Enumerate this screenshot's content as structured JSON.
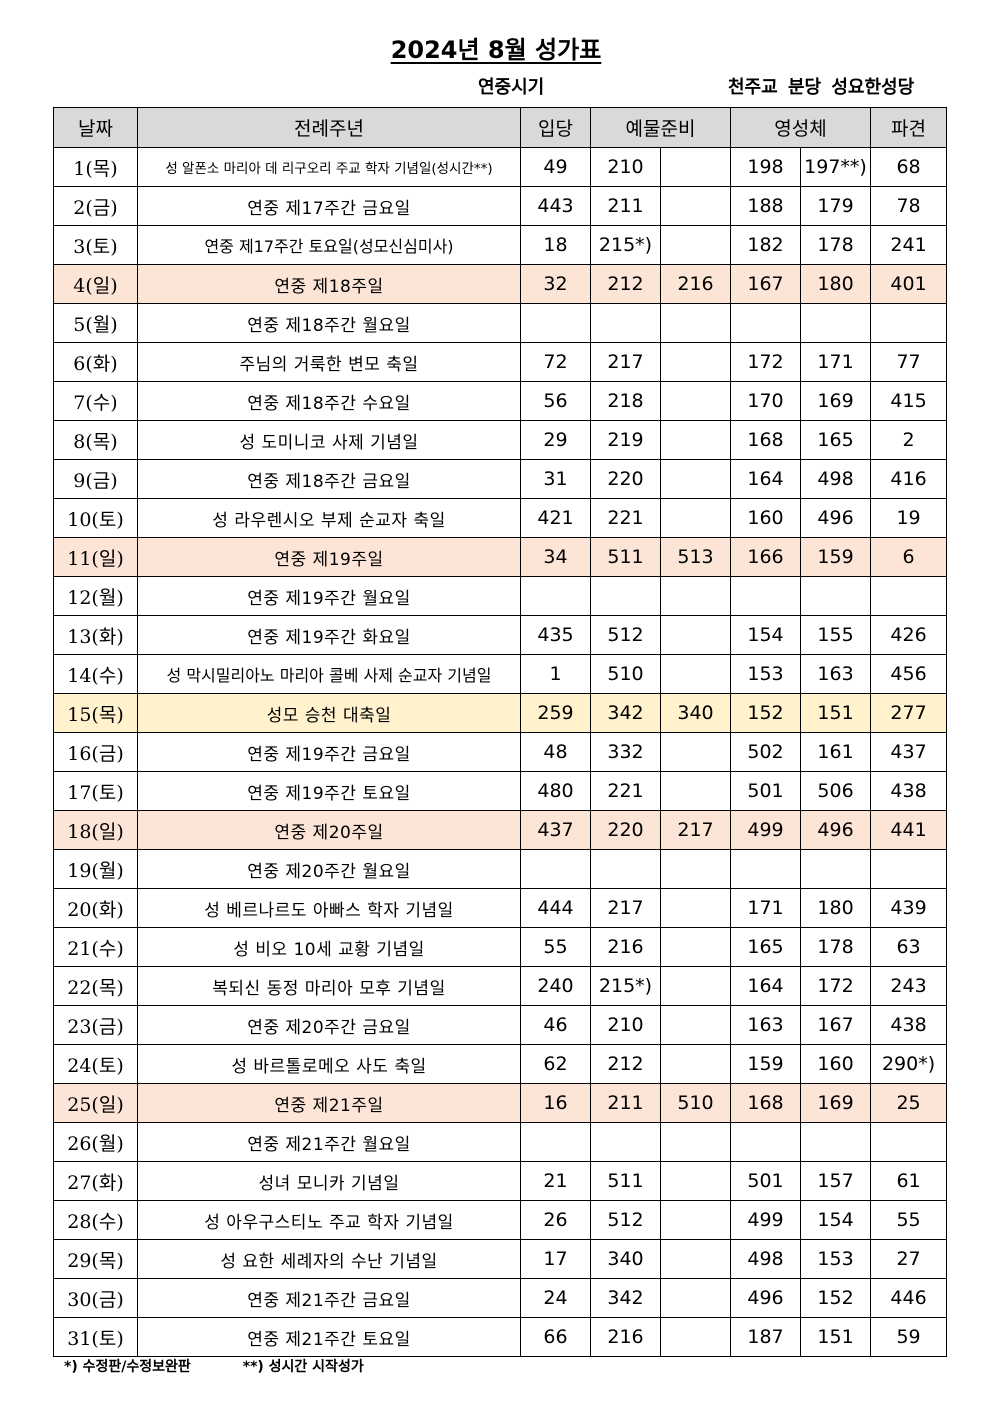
{
  "title": "2024년 8월 성가표",
  "season": "연중시기",
  "church": "천주교 분당 성요한성당",
  "headers": {
    "date": "날짜",
    "feast": "전례주년",
    "entrance": "입당",
    "offertory": "예물준비",
    "communion": "영성체",
    "dismissal": "파견"
  },
  "rows": [
    {
      "date": "1(목)",
      "feast": "성 알폰소 마리아 데 리구오리 주교 학자 기념일(성시간**)",
      "ent": "49",
      "off1": "210",
      "off2": "",
      "com1": "198",
      "com2": "197**)",
      "dis": "68",
      "type": "weekday"
    },
    {
      "date": "2(금)",
      "feast": "연중 제17주간 금요일",
      "ent": "443",
      "off1": "211",
      "off2": "",
      "com1": "188",
      "com2": "179",
      "dis": "78",
      "type": "weekday"
    },
    {
      "date": "3(토)",
      "feast": "연중 제17주간 토요일(성모신심미사)",
      "ent": "18",
      "off1": "215*)",
      "off2": "",
      "com1": "182",
      "com2": "178",
      "dis": "241",
      "type": "weekday"
    },
    {
      "date": "4(일)",
      "feast": "연중 제18주일",
      "ent": "32",
      "off1": "212",
      "off2": "216",
      "com1": "167",
      "com2": "180",
      "dis": "401",
      "type": "sunday"
    },
    {
      "date": "5(월)",
      "feast": "연중 제18주간 월요일",
      "ent": "",
      "off1": "",
      "off2": "",
      "com1": "",
      "com2": "",
      "dis": "",
      "type": "weekday"
    },
    {
      "date": "6(화)",
      "feast": "주님의 거룩한 변모 축일",
      "ent": "72",
      "off1": "217",
      "off2": "",
      "com1": "172",
      "com2": "171",
      "dis": "77",
      "type": "weekday"
    },
    {
      "date": "7(수)",
      "feast": "연중 제18주간 수요일",
      "ent": "56",
      "off1": "218",
      "off2": "",
      "com1": "170",
      "com2": "169",
      "dis": "415",
      "type": "weekday"
    },
    {
      "date": "8(목)",
      "feast": "성 도미니코 사제 기념일",
      "ent": "29",
      "off1": "219",
      "off2": "",
      "com1": "168",
      "com2": "165",
      "dis": "2",
      "type": "weekday"
    },
    {
      "date": "9(금)",
      "feast": "연중 제18주간 금요일",
      "ent": "31",
      "off1": "220",
      "off2": "",
      "com1": "164",
      "com2": "498",
      "dis": "416",
      "type": "weekday"
    },
    {
      "date": "10(토)",
      "feast": "성 라우렌시오 부제 순교자 축일",
      "ent": "421",
      "off1": "221",
      "off2": "",
      "com1": "160",
      "com2": "496",
      "dis": "19",
      "type": "weekday"
    },
    {
      "date": "11(일)",
      "feast": "연중 제19주일",
      "ent": "34",
      "off1": "511",
      "off2": "513",
      "com1": "166",
      "com2": "159",
      "dis": "6",
      "type": "sunday"
    },
    {
      "date": "12(월)",
      "feast": "연중 제19주간 월요일",
      "ent": "",
      "off1": "",
      "off2": "",
      "com1": "",
      "com2": "",
      "dis": "",
      "type": "weekday"
    },
    {
      "date": "13(화)",
      "feast": "연중 제19주간 화요일",
      "ent": "435",
      "off1": "512",
      "off2": "",
      "com1": "154",
      "com2": "155",
      "dis": "426",
      "type": "weekday"
    },
    {
      "date": "14(수)",
      "feast": "성 막시밀리아노 마리아 콜베 사제 순교자 기념일",
      "ent": "1",
      "off1": "510",
      "off2": "",
      "com1": "153",
      "com2": "163",
      "dis": "456",
      "type": "weekday"
    },
    {
      "date": "15(목)",
      "feast": "성모 승천 대축일",
      "ent": "259",
      "off1": "342",
      "off2": "340",
      "com1": "152",
      "com2": "151",
      "dis": "277",
      "type": "solemnity"
    },
    {
      "date": "16(금)",
      "feast": "연중 제19주간 금요일",
      "ent": "48",
      "off1": "332",
      "off2": "",
      "com1": "502",
      "com2": "161",
      "dis": "437",
      "type": "weekday"
    },
    {
      "date": "17(토)",
      "feast": "연중 제19주간 토요일",
      "ent": "480",
      "off1": "221",
      "off2": "",
      "com1": "501",
      "com2": "506",
      "dis": "438",
      "type": "weekday"
    },
    {
      "date": "18(일)",
      "feast": "연중 제20주일",
      "ent": "437",
      "off1": "220",
      "off2": "217",
      "com1": "499",
      "com2": "496",
      "dis": "441",
      "type": "sunday"
    },
    {
      "date": "19(월)",
      "feast": "연중 제20주간 월요일",
      "ent": "",
      "off1": "",
      "off2": "",
      "com1": "",
      "com2": "",
      "dis": "",
      "type": "weekday"
    },
    {
      "date": "20(화)",
      "feast": "성 베르나르도 아빠스 학자 기념일",
      "ent": "444",
      "off1": "217",
      "off2": "",
      "com1": "171",
      "com2": "180",
      "dis": "439",
      "type": "weekday"
    },
    {
      "date": "21(수)",
      "feast": "성 비오 10세 교황 기념일",
      "ent": "55",
      "off1": "216",
      "off2": "",
      "com1": "165",
      "com2": "178",
      "dis": "63",
      "type": "weekday"
    },
    {
      "date": "22(목)",
      "feast": "복되신 동정 마리아 모후 기념일",
      "ent": "240",
      "off1": "215*)",
      "off2": "",
      "com1": "164",
      "com2": "172",
      "dis": "243",
      "type": "weekday"
    },
    {
      "date": "23(금)",
      "feast": "연중 제20주간 금요일",
      "ent": "46",
      "off1": "210",
      "off2": "",
      "com1": "163",
      "com2": "167",
      "dis": "438",
      "type": "weekday"
    },
    {
      "date": "24(토)",
      "feast": "성 바르톨로메오 사도 축일",
      "ent": "62",
      "off1": "212",
      "off2": "",
      "com1": "159",
      "com2": "160",
      "dis": "290*)",
      "type": "weekday"
    },
    {
      "date": "25(일)",
      "feast": "연중 제21주일",
      "ent": "16",
      "off1": "211",
      "off2": "510",
      "com1": "168",
      "com2": "169",
      "dis": "25",
      "type": "sunday"
    },
    {
      "date": "26(월)",
      "feast": "연중 제21주간 월요일",
      "ent": "",
      "off1": "",
      "off2": "",
      "com1": "",
      "com2": "",
      "dis": "",
      "type": "weekday"
    },
    {
      "date": "27(화)",
      "feast": "성녀 모니카 기념일",
      "ent": "21",
      "off1": "511",
      "off2": "",
      "com1": "501",
      "com2": "157",
      "dis": "61",
      "type": "weekday"
    },
    {
      "date": "28(수)",
      "feast": "성 아우구스티노 주교 학자 기념일",
      "ent": "26",
      "off1": "512",
      "off2": "",
      "com1": "499",
      "com2": "154",
      "dis": "55",
      "type": "weekday"
    },
    {
      "date": "29(목)",
      "feast": "성 요한 세례자의 수난 기념일",
      "ent": "17",
      "off1": "340",
      "off2": "",
      "com1": "498",
      "com2": "153",
      "dis": "27",
      "type": "weekday"
    },
    {
      "date": "30(금)",
      "feast": "연중 제21주간 금요일",
      "ent": "24",
      "off1": "342",
      "off2": "",
      "com1": "496",
      "com2": "152",
      "dis": "446",
      "type": "weekday"
    },
    {
      "date": "31(토)",
      "feast": "연중 제21주간 토요일",
      "ent": "66",
      "off1": "216",
      "off2": "",
      "com1": "187",
      "com2": "151",
      "dis": "59",
      "type": "weekday"
    }
  ],
  "footnotes": {
    "single": "*) 수정판/수정보완판",
    "double": "**) 성시간 시작성가"
  },
  "colors": {
    "header_bg": "#d9d9d9",
    "sunday_bg": "#fce4d6",
    "solemnity_bg": "#fff2cc"
  }
}
